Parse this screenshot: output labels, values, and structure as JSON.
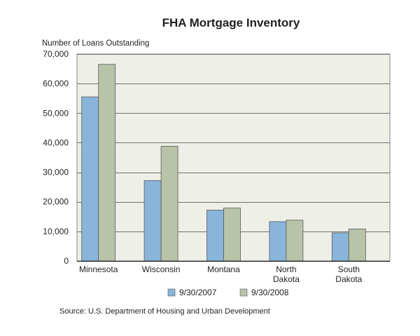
{
  "chart_data": {
    "type": "bar",
    "title": "FHA Mortgage Inventory",
    "ylabel": "Number of Loans Outstanding",
    "xlabel": "",
    "categories": [
      [
        "Minnesota"
      ],
      [
        "Wisconsin"
      ],
      [
        "Montana"
      ],
      [
        "North",
        "Dakota"
      ],
      [
        "South",
        "Dakota"
      ]
    ],
    "series": [
      {
        "name": "9/30/2007",
        "color": "#8ab5da",
        "values": [
          55500,
          27200,
          17200,
          13300,
          9500
        ]
      },
      {
        "name": "9/30/2008",
        "color": "#b9c3a8",
        "values": [
          66500,
          38800,
          17900,
          13800,
          10800
        ]
      }
    ],
    "ylim": [
      0,
      70000
    ],
    "yticks": [
      0,
      10000,
      20000,
      30000,
      40000,
      50000,
      60000,
      70000
    ],
    "ytick_labels": [
      "0",
      "10,000",
      "20,000",
      "30,000",
      "40,000",
      "50,000",
      "60,000",
      "70,000"
    ],
    "grid": true,
    "legend_position": "bottom",
    "plot_background": "#eef0e8",
    "source": "Source: U.S. Department of Housing and Urban Development"
  }
}
